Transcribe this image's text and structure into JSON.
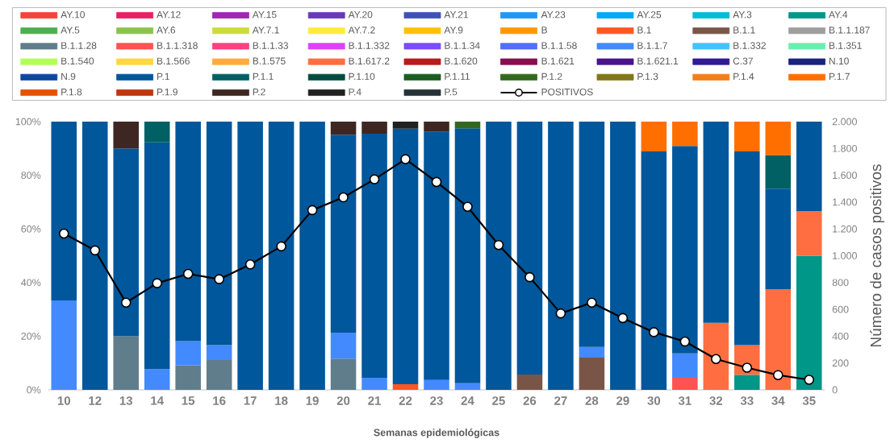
{
  "chart_data": {
    "type": "bar",
    "stacked": true,
    "legend": "top",
    "xlabel": "Semanas epidemiológicas",
    "y2label": "Número de casos positivos",
    "categories": [
      "10",
      "12",
      "13",
      "14",
      "15",
      "16",
      "17",
      "18",
      "19",
      "20",
      "21",
      "22",
      "23",
      "24",
      "25",
      "26",
      "27",
      "28",
      "29",
      "30",
      "31",
      "32",
      "33",
      "34",
      "35"
    ],
    "ylim": [
      0,
      100
    ],
    "yticks": [
      {
        "value": 0,
        "label": "0%"
      },
      {
        "value": 20,
        "label": "20%"
      },
      {
        "value": 40,
        "label": "40%"
      },
      {
        "value": 60,
        "label": "60%"
      },
      {
        "value": 80,
        "label": "80%"
      },
      {
        "value": 100,
        "label": "100%"
      }
    ],
    "y2lim": [
      0,
      2000
    ],
    "y2ticks": [
      0,
      200,
      400,
      600,
      800,
      {
        "value": 1000,
        "label": "1.000"
      },
      {
        "value": 1200,
        "label": "1.200"
      },
      {
        "value": 1400,
        "label": "1.400"
      },
      {
        "value": 1600,
        "label": "1.600"
      },
      {
        "value": 1800,
        "label": "1.800"
      },
      {
        "value": 2000,
        "label": "2.000"
      }
    ],
    "series": [
      {
        "name": "AY.10",
        "color": "#F44336",
        "values": [
          0,
          0,
          0,
          0,
          0,
          0,
          0,
          0,
          0,
          0,
          0,
          0,
          0,
          0,
          0,
          0,
          0,
          0,
          0,
          0,
          0,
          0,
          0,
          0,
          0
        ]
      },
      {
        "name": "AY.12",
        "color": "#E91E63",
        "values": [
          0,
          0,
          0,
          0,
          0,
          0,
          0,
          0,
          0,
          0,
          0,
          0,
          0,
          0,
          0,
          0,
          0,
          0,
          0,
          0,
          0,
          0,
          0,
          0,
          0
        ]
      },
      {
        "name": "AY.15",
        "color": "#9C27B0",
        "values": [
          0,
          0,
          0,
          0,
          0,
          0,
          0,
          0,
          0,
          0,
          0,
          0,
          0,
          0,
          0,
          0,
          0,
          0,
          0,
          0,
          0,
          0,
          0,
          0,
          0
        ]
      },
      {
        "name": "AY.20",
        "color": "#673AB7",
        "values": [
          0,
          0,
          0,
          0,
          0,
          0,
          0,
          0,
          0,
          0,
          0,
          0,
          0,
          0,
          0,
          0,
          0,
          0,
          0,
          0,
          0,
          0,
          0,
          0,
          0
        ]
      },
      {
        "name": "AY.21",
        "color": "#3F51B5",
        "values": [
          0,
          0,
          0,
          0,
          0,
          0,
          0,
          0,
          0,
          0,
          0,
          0,
          0,
          0,
          0,
          0,
          0,
          0,
          0,
          0,
          0,
          0,
          0,
          0,
          0
        ]
      },
      {
        "name": "AY.23",
        "color": "#2196F3",
        "values": [
          0,
          0,
          0,
          0,
          0,
          0,
          0,
          0,
          0,
          0,
          0,
          0,
          0,
          0,
          0,
          0,
          0,
          0,
          0,
          0,
          0,
          0,
          0,
          0,
          0
        ]
      },
      {
        "name": "AY.25",
        "color": "#03A9F4",
        "values": [
          0,
          0,
          0,
          0,
          0,
          0,
          0,
          0,
          0,
          0,
          0,
          0,
          0,
          0,
          0,
          0,
          0,
          0,
          0,
          0,
          0,
          0,
          0,
          0,
          0
        ]
      },
      {
        "name": "AY.3",
        "color": "#00BCD4",
        "values": [
          0,
          0,
          0,
          0,
          0,
          0,
          0,
          0,
          0,
          0,
          0,
          0,
          0,
          0,
          0,
          0,
          0,
          0,
          0,
          0,
          0,
          0,
          0,
          0,
          0
        ]
      },
      {
        "name": "AY.4",
        "color": "#009688",
        "values": [
          0,
          0,
          0,
          0,
          0,
          0,
          0,
          0,
          0,
          0,
          0,
          0,
          0,
          0,
          0,
          0,
          0,
          0,
          0,
          0,
          0,
          0,
          5.6,
          0,
          50
        ]
      },
      {
        "name": "AY.5",
        "color": "#4CAF50",
        "values": [
          0,
          0,
          0,
          0,
          0,
          0,
          0,
          0,
          0,
          0,
          0,
          0,
          0,
          0,
          0,
          0,
          0,
          0,
          0,
          0,
          0,
          0,
          0,
          0,
          0
        ]
      },
      {
        "name": "AY.6",
        "color": "#8BC34A",
        "values": [
          0,
          0,
          0,
          0,
          0,
          0,
          0,
          0,
          0,
          0,
          0,
          0,
          0,
          0,
          0,
          0,
          0,
          0,
          0,
          0,
          0,
          0,
          0,
          0,
          0
        ]
      },
      {
        "name": "AY.7.1",
        "color": "#CDDC39",
        "values": [
          0,
          0,
          0,
          0,
          0,
          0,
          0,
          0,
          0,
          0,
          0,
          0,
          0,
          0,
          0,
          0,
          0,
          0,
          0,
          0,
          0,
          0,
          0,
          0,
          0
        ]
      },
      {
        "name": "AY.7.2",
        "color": "#FFEB3B",
        "values": [
          0,
          0,
          0,
          0,
          0,
          0,
          0,
          0,
          0,
          0,
          0,
          0,
          0,
          0,
          0,
          0,
          0,
          0,
          0,
          0,
          0,
          0,
          0,
          0,
          0
        ]
      },
      {
        "name": "AY.9",
        "color": "#FFC107",
        "values": [
          0,
          0,
          0,
          0,
          0,
          0,
          0,
          0,
          0,
          0,
          0,
          0,
          0,
          0,
          0,
          0,
          0,
          0,
          0,
          0,
          0,
          0,
          0,
          0,
          0
        ]
      },
      {
        "name": "B",
        "color": "#FF9800",
        "values": [
          0,
          0,
          0,
          0,
          0,
          0,
          0,
          0,
          0,
          0,
          0,
          0,
          0,
          0,
          0,
          0,
          0,
          0,
          0,
          0,
          0,
          0,
          0,
          0,
          0
        ]
      },
      {
        "name": "B.1",
        "color": "#FF5722",
        "values": [
          0,
          0,
          0,
          0,
          0,
          0,
          0,
          0,
          0,
          0,
          0,
          2.1,
          0,
          0,
          0,
          0,
          0,
          0,
          0,
          0,
          0,
          0,
          0,
          0,
          0
        ]
      },
      {
        "name": "B.1.1",
        "color": "#795548",
        "values": [
          0,
          0,
          0,
          0,
          0,
          0,
          0,
          0,
          0,
          0,
          0,
          0,
          0,
          0,
          0,
          5.7,
          0,
          12,
          0,
          0,
          0,
          0,
          0,
          0,
          0
        ]
      },
      {
        "name": "B.1.1.187",
        "color": "#9E9E9E",
        "values": [
          0,
          0,
          0,
          0,
          0,
          0,
          0,
          0,
          0,
          0,
          0,
          0,
          0,
          0,
          0,
          0,
          0,
          0,
          0,
          0,
          0,
          0,
          0,
          0,
          0
        ]
      },
      {
        "name": "B.1.1.28",
        "color": "#607D8B",
        "values": [
          0,
          0,
          20,
          0,
          9.1,
          11.1,
          0,
          0,
          0,
          11.6,
          0,
          0,
          0,
          0,
          0,
          0,
          0,
          0,
          0,
          0,
          0,
          0,
          0,
          0,
          0
        ]
      },
      {
        "name": "B.1.1.318",
        "color": "#FF5252",
        "values": [
          0,
          0,
          0,
          0,
          0,
          0,
          0,
          0,
          0,
          0,
          0,
          0,
          0,
          0,
          0,
          0,
          0,
          0,
          0,
          0,
          4.5,
          0,
          0,
          0,
          0
        ]
      },
      {
        "name": "B.1.1.33",
        "color": "#FF4081",
        "values": [
          0,
          0,
          0,
          0,
          0,
          0,
          0,
          0,
          0,
          0,
          0,
          0,
          0,
          0,
          0,
          0,
          0,
          0,
          0,
          0,
          0,
          0,
          0,
          0,
          0
        ]
      },
      {
        "name": "B.1.1.332",
        "color": "#E040FB",
        "values": [
          0,
          0,
          0,
          0,
          0,
          0,
          0,
          0,
          0,
          0,
          0,
          0,
          0,
          0,
          0,
          0,
          0,
          0,
          0,
          0,
          0,
          0,
          0,
          0,
          0
        ]
      },
      {
        "name": "B.1.1.34",
        "color": "#7C4DFF",
        "values": [
          0,
          0,
          0,
          0,
          0,
          0,
          0,
          0,
          0,
          0,
          0,
          0,
          0,
          0,
          0,
          0,
          0,
          0,
          0,
          0,
          0,
          0,
          0,
          0,
          0
        ]
      },
      {
        "name": "B.1.1.58",
        "color": "#536DFE",
        "values": [
          0,
          0,
          0,
          0,
          0,
          0,
          0,
          0,
          0,
          0,
          0,
          0,
          0,
          0,
          0,
          0,
          0,
          0,
          0,
          0,
          0,
          0,
          0,
          0,
          0
        ]
      },
      {
        "name": "B.1.1.7",
        "color": "#448AFF",
        "values": [
          33.3,
          0,
          0,
          7.7,
          9.1,
          5.6,
          0,
          0,
          0,
          9.7,
          4.5,
          0,
          3.7,
          2.5,
          0,
          0,
          0,
          4,
          0,
          0,
          9.1,
          0,
          0,
          0,
          0
        ]
      },
      {
        "name": "B.1.332",
        "color": "#40C4FF",
        "values": [
          0,
          0,
          0,
          0,
          0,
          0,
          0,
          0,
          0,
          0,
          0,
          0,
          0,
          0,
          0,
          0,
          0,
          0,
          0,
          0,
          0,
          0,
          0,
          0,
          0
        ]
      },
      {
        "name": "B.1.351",
        "color": "#69F0AE",
        "values": [
          0,
          0,
          0,
          0,
          0,
          0,
          0,
          0,
          0,
          0,
          0,
          0,
          0,
          0,
          0,
          0,
          0,
          0,
          0,
          0,
          0,
          0,
          0,
          0,
          0
        ]
      },
      {
        "name": "B.1.540",
        "color": "#B2FF59",
        "values": [
          0,
          0,
          0,
          0,
          0,
          0,
          0,
          0,
          0,
          0,
          0,
          0,
          0,
          0,
          0,
          0,
          0,
          0,
          0,
          0,
          0,
          0,
          0,
          0,
          0
        ]
      },
      {
        "name": "B.1.566",
        "color": "#FFD740",
        "values": [
          0,
          0,
          0,
          0,
          0,
          0,
          0,
          0,
          0,
          0,
          0,
          0,
          0,
          0,
          0,
          0,
          0,
          0,
          0,
          0,
          0,
          0,
          0,
          0,
          0
        ]
      },
      {
        "name": "B.1.575",
        "color": "#FFAB40",
        "values": [
          0,
          0,
          0,
          0,
          0,
          0,
          0,
          0,
          0,
          0,
          0,
          0,
          0,
          0,
          0,
          0,
          0,
          0,
          0,
          0,
          0,
          0,
          0,
          0,
          0
        ]
      },
      {
        "name": "B.1.617.2",
        "color": "#FF6E40",
        "values": [
          0,
          0,
          0,
          0,
          0,
          0,
          0,
          0,
          0,
          0,
          0,
          0,
          0,
          0,
          0,
          0,
          0,
          0,
          0,
          0,
          0,
          25,
          11.1,
          37.5,
          16.7
        ]
      },
      {
        "name": "B.1.620",
        "color": "#B71C1C",
        "values": [
          0,
          0,
          0,
          0,
          0,
          0,
          0,
          0,
          0,
          0,
          0,
          0,
          0,
          0,
          0,
          0,
          0,
          0,
          0,
          0,
          0,
          0,
          0,
          0,
          0
        ]
      },
      {
        "name": "B.1.621",
        "color": "#880E4F",
        "values": [
          0,
          0,
          0,
          0,
          0,
          0,
          0,
          0,
          0,
          0,
          0,
          0,
          0,
          0,
          0,
          0,
          0,
          0,
          0,
          0,
          0,
          0,
          0,
          0,
          0
        ]
      },
      {
        "name": "B.1.621.1",
        "color": "#4A148C",
        "values": [
          0,
          0,
          0,
          0,
          0,
          0,
          0,
          0,
          0,
          0,
          0,
          0,
          0,
          0,
          0,
          0,
          0,
          0,
          0,
          0,
          0,
          0,
          0,
          0,
          0
        ]
      },
      {
        "name": "C.37",
        "color": "#311B92",
        "values": [
          0,
          0,
          0,
          0,
          0,
          0,
          0,
          0,
          0,
          0,
          0,
          0,
          0,
          0,
          0,
          0,
          0,
          0,
          0,
          0,
          0,
          0,
          0,
          0,
          0
        ]
      },
      {
        "name": "N.10",
        "color": "#1A237E",
        "values": [
          0,
          0,
          0,
          0,
          0,
          0,
          0,
          0,
          0,
          0,
          0,
          0,
          0,
          0,
          0,
          0,
          0,
          0,
          0,
          0,
          0,
          0,
          0,
          0,
          0
        ]
      },
      {
        "name": "N.9",
        "color": "#0D47A1",
        "values": [
          0,
          0,
          0,
          0,
          0,
          0,
          0,
          0,
          0,
          0,
          0,
          0,
          0,
          0,
          0,
          0,
          0,
          0,
          0,
          0,
          0,
          0,
          0,
          0,
          0
        ]
      },
      {
        "name": "P.1",
        "color": "#01579B",
        "values": [
          66.7,
          100,
          70,
          84.6,
          81.8,
          83.3,
          100,
          100,
          100,
          73.8,
          91,
          95.3,
          92.6,
          95,
          100,
          94.3,
          100,
          84,
          100,
          88.9,
          77.3,
          75,
          72.2,
          37.5,
          33.3
        ]
      },
      {
        "name": "P.1.1",
        "color": "#006064",
        "values": [
          0,
          0,
          0,
          7.7,
          0,
          0,
          0,
          0,
          0,
          0,
          0,
          0,
          0,
          0,
          0,
          0,
          0,
          0,
          0,
          0,
          0,
          0,
          0,
          12.5,
          0
        ]
      },
      {
        "name": "P.1.10",
        "color": "#004D40",
        "values": [
          0,
          0,
          0,
          0,
          0,
          0,
          0,
          0,
          0,
          0,
          0,
          0,
          0,
          0,
          0,
          0,
          0,
          0,
          0,
          0,
          0,
          0,
          0,
          0,
          0
        ]
      },
      {
        "name": "P.1.11",
        "color": "#1B5E20",
        "values": [
          0,
          0,
          0,
          0,
          0,
          0,
          0,
          0,
          0,
          0,
          0,
          0,
          0,
          0,
          0,
          0,
          0,
          0,
          0,
          0,
          0,
          0,
          0,
          0,
          0
        ]
      },
      {
        "name": "P.1.2",
        "color": "#33691E",
        "values": [
          0,
          0,
          0,
          0,
          0,
          0,
          0,
          0,
          0,
          0,
          0,
          0,
          0,
          2.5,
          0,
          0,
          0,
          0,
          0,
          0,
          0,
          0,
          0,
          0,
          0
        ]
      },
      {
        "name": "P.1.3",
        "color": "#827717",
        "values": [
          0,
          0,
          0,
          0,
          0,
          0,
          0,
          0,
          0,
          0,
          0,
          0,
          0,
          0,
          0,
          0,
          0,
          0,
          0,
          0,
          0,
          0,
          0,
          0,
          0
        ]
      },
      {
        "name": "P.1.4",
        "color": "#F57F17",
        "values": [
          0,
          0,
          0,
          0,
          0,
          0,
          0,
          0,
          0,
          0,
          0,
          0,
          0,
          0,
          0,
          0,
          0,
          0,
          0,
          0,
          0,
          0,
          0,
          0,
          0
        ]
      },
      {
        "name": "P.1.7",
        "color": "#FF6F00",
        "values": [
          0,
          0,
          0,
          0,
          0,
          0,
          0,
          0,
          0,
          0,
          0,
          0,
          0,
          0,
          0,
          0,
          0,
          0,
          0,
          11.1,
          9.1,
          0,
          11.1,
          12.5,
          0
        ]
      },
      {
        "name": "P.1.8",
        "color": "#E65100",
        "values": [
          0,
          0,
          0,
          0,
          0,
          0,
          0,
          0,
          0,
          0,
          0,
          0,
          0,
          0,
          0,
          0,
          0,
          0,
          0,
          0,
          0,
          0,
          0,
          0,
          0
        ]
      },
      {
        "name": "P.1.9",
        "color": "#BF360C",
        "values": [
          0,
          0,
          0,
          0,
          0,
          0,
          0,
          0,
          0,
          0,
          0,
          0,
          0,
          0,
          0,
          0,
          0,
          0,
          0,
          0,
          0,
          0,
          0,
          0,
          0
        ]
      },
      {
        "name": "P.2",
        "color": "#3E2723",
        "values": [
          0,
          0,
          10,
          0,
          0,
          0,
          0,
          0,
          0,
          4.9,
          4.5,
          0,
          3.7,
          0,
          0,
          0,
          0,
          0,
          0,
          0,
          0,
          0,
          0,
          0,
          0
        ]
      },
      {
        "name": "P.4",
        "color": "#212121",
        "values": [
          0,
          0,
          0,
          0,
          0,
          0,
          0,
          0,
          0,
          0,
          0,
          2.6,
          0,
          0,
          0,
          0,
          0,
          0,
          0,
          0,
          0,
          0,
          0,
          0,
          0
        ]
      },
      {
        "name": "P.5",
        "color": "#263238",
        "values": [
          0,
          0,
          0,
          0,
          0,
          0,
          0,
          0,
          0,
          0,
          0,
          0,
          0,
          0,
          0,
          0,
          0,
          0,
          0,
          0,
          0,
          0,
          0,
          0,
          0
        ]
      },
      {
        "name": "POSITIVOS",
        "color": "#000000",
        "type": "line",
        "axis": "y2",
        "marker": "circle",
        "values": [
          1165,
          1040,
          650,
          795,
          865,
          825,
          935,
          1070,
          1340,
          1435,
          1570,
          1720,
          1550,
          1365,
          1080,
          840,
          570,
          650,
          535,
          430,
          360,
          230,
          165,
          110,
          75
        ]
      }
    ]
  }
}
